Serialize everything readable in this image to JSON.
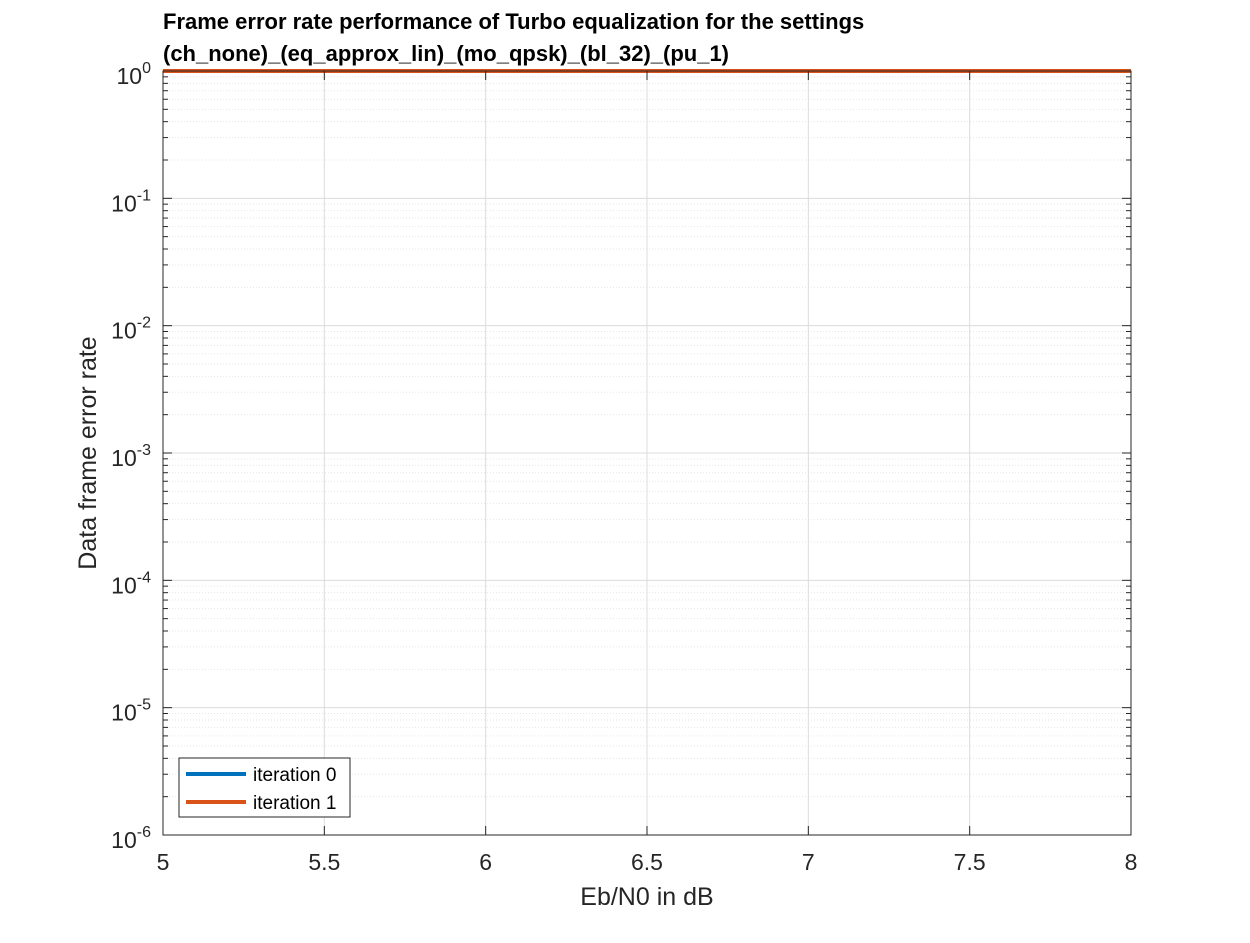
{
  "chart_data": {
    "type": "line",
    "title_lines": [
      "Frame error rate performance of Turbo equalization for the settings",
      "(ch_none)_(eq_approx_lin)_(mo_qpsk)_(bl_32)_(pu_1)"
    ],
    "xlabel": "Eb/N0 in dB",
    "ylabel": "Data frame error rate",
    "xlim": [
      5,
      8
    ],
    "ylim": [
      1e-06,
      1
    ],
    "yscale": "log",
    "grid": true,
    "minor_grid": true,
    "x_ticks": [
      "5",
      "5.5",
      "6",
      "6.5",
      "7",
      "7.5",
      "8"
    ],
    "y_ticks": [
      {
        "base": "10",
        "exp": "-6"
      },
      {
        "base": "10",
        "exp": "-5"
      },
      {
        "base": "10",
        "exp": "-4"
      },
      {
        "base": "10",
        "exp": "-3"
      },
      {
        "base": "10",
        "exp": "-2"
      },
      {
        "base": "10",
        "exp": "-1"
      },
      {
        "base": "10",
        "exp": "0"
      }
    ],
    "legend_placement": "bottom-left",
    "series": [
      {
        "name": "iteration 0",
        "color": "#0072BD",
        "x": [
          5,
          5.5,
          6,
          6.5,
          7,
          7.5,
          8
        ],
        "y": [
          1,
          1,
          1,
          1,
          1,
          1,
          1
        ]
      },
      {
        "name": "iteration 1",
        "color": "#D95319",
        "x": [
          5,
          5.5,
          6,
          6.5,
          7,
          7.5,
          8
        ],
        "y": [
          1,
          1,
          1,
          1,
          1,
          1,
          1
        ]
      }
    ]
  }
}
